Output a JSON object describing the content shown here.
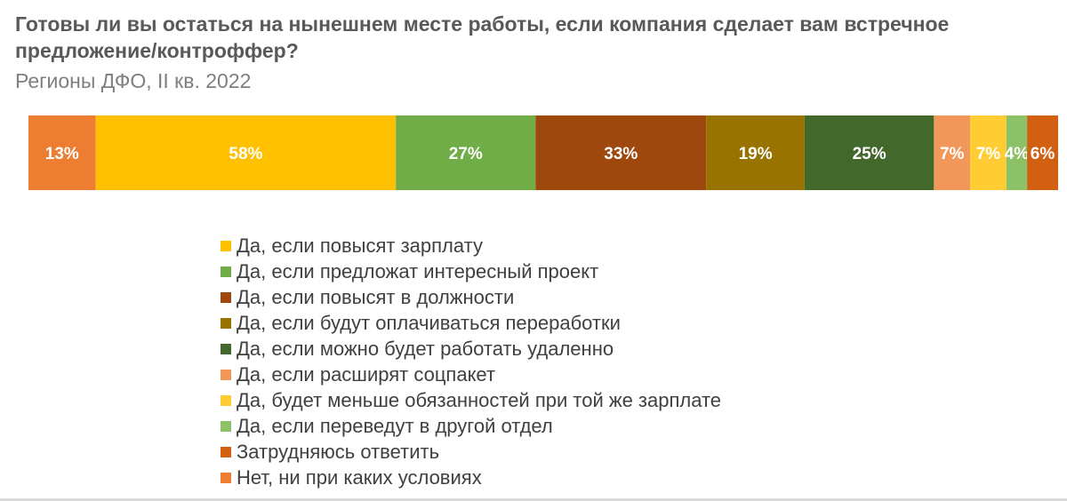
{
  "chart_data": {
    "type": "bar",
    "orientation": "horizontal-stacked",
    "title": "Готовы ли вы остаться на нынешнем месте работы,  если компания сделает вам встречное предложение/контроффер?",
    "subtitle": "Регионы ДФО, II кв. 2022",
    "xlim": [
      0,
      199
    ],
    "grid": false,
    "legend_position": "bottom",
    "segments": [
      {
        "name": "Нет, ни при каких условиях",
        "value": 13,
        "label": "13%",
        "color": "#ED7D31"
      },
      {
        "name": "Да, если повысят зарплату",
        "value": 58,
        "label": "58%",
        "color": "#FFC000"
      },
      {
        "name": "Да, если предложат интересный проект",
        "value": 27,
        "label": "27%",
        "color": "#70AD47"
      },
      {
        "name": "Да, если повысят в должности",
        "value": 33,
        "label": "33%",
        "color": "#9E480E"
      },
      {
        "name": "Да, если будут оплачиваться переработки",
        "value": 19,
        "label": "19%",
        "color": "#997300"
      },
      {
        "name": "Да, если можно будет работать удаленно",
        "value": 25,
        "label": "25%",
        "color": "#43682B"
      },
      {
        "name": "Да, если расширят соцпакет",
        "value": 7,
        "label": "7%",
        "color": "#F1975A"
      },
      {
        "name": "Да, будет меньше обязанностей при той же зарплате",
        "value": 7,
        "label": "7%",
        "color": "#FFCD33"
      },
      {
        "name": "Да, если переведут в другой отдел",
        "value": 4,
        "label": "4%",
        "color": "#8CC168"
      },
      {
        "name": "Затрудняюсь ответить",
        "value": 6,
        "label": "6%",
        "color": "#D26012"
      }
    ],
    "legend": [
      {
        "label": "Да, если повысят зарплату",
        "color": "#FFC000"
      },
      {
        "label": "Да, если предложат интересный проект",
        "color": "#70AD47"
      },
      {
        "label": "Да, если повысят в должности",
        "color": "#9E480E"
      },
      {
        "label": "Да, если будут оплачиваться переработки",
        "color": "#997300"
      },
      {
        "label": "Да, если можно будет работать удаленно",
        "color": "#43682B"
      },
      {
        "label": "Да, если расширят соцпакет",
        "color": "#F1975A"
      },
      {
        "label": "Да, будет меньше обязанностей при той же зарплате",
        "color": "#FFCD33"
      },
      {
        "label": "Да, если переведут в другой отдел",
        "color": "#8CC168"
      },
      {
        "label": "Затрудняюсь ответить",
        "color": "#D26012"
      },
      {
        "label": "Нет, ни при каких условиях",
        "color": "#ED7D31"
      }
    ]
  }
}
